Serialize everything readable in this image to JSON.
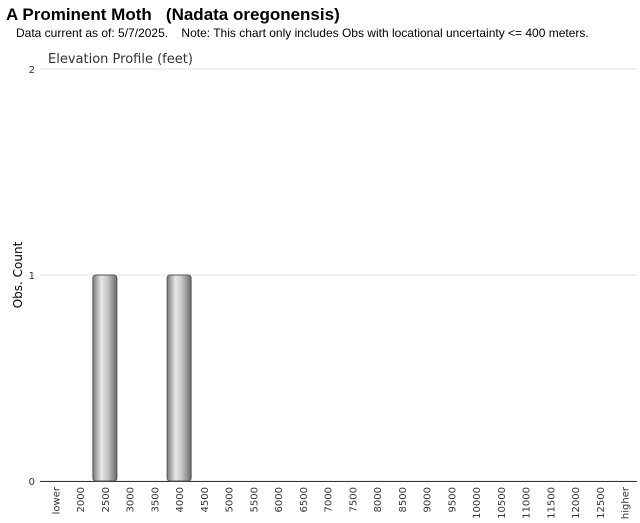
{
  "chart_data": {
    "type": "bar",
    "title": "A Prominent Moth   (Nadata oregonensis)",
    "subtitle": "Data current as of: 5/7/2025.    Note: This chart only includes Obs with locational uncertainty <= 400 meters.",
    "chart_title": "Elevation Profile (feet)",
    "y_label": "Obs. Count",
    "categories": [
      "lower",
      "2000",
      "2500",
      "3000",
      "3500",
      "4000",
      "4500",
      "5000",
      "5500",
      "6000",
      "6500",
      "7000",
      "7500",
      "8000",
      "8500",
      "9000",
      "9500",
      "10000",
      "10500",
      "11000",
      "11500",
      "12000",
      "12500",
      "higher"
    ],
    "values": [
      0,
      0,
      1,
      0,
      0,
      1,
      0,
      0,
      0,
      0,
      0,
      0,
      0,
      0,
      0,
      0,
      0,
      0,
      0,
      0,
      0,
      0,
      0,
      0
    ],
    "color": "#a0a0a0",
    "ylim": [
      0,
      2
    ],
    "yticks": [
      0,
      1,
      2
    ],
    "grid": true
  }
}
